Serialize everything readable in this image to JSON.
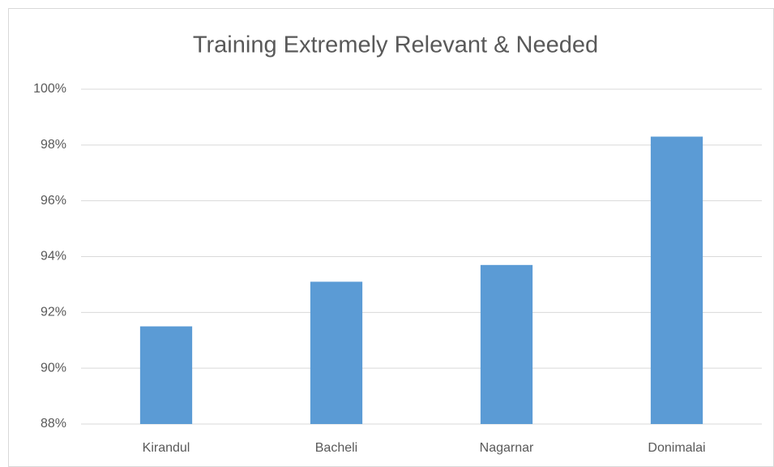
{
  "chart_data": {
    "type": "bar",
    "title": "Training Extremely Relevant & Needed",
    "categories": [
      "Kirandul",
      "Bacheli",
      "Nagarnar",
      "Donimalai"
    ],
    "values": [
      91.5,
      93.1,
      93.7,
      98.3
    ],
    "color": "#5b9bd5",
    "ylim": [
      88,
      100
    ],
    "yticks": [
      {
        "value": 88,
        "label": "88%"
      },
      {
        "value": 90,
        "label": "90%"
      },
      {
        "value": 92,
        "label": "92%"
      },
      {
        "value": 94,
        "label": "94%"
      },
      {
        "value": 96,
        "label": "96%"
      },
      {
        "value": 98,
        "label": "98%"
      },
      {
        "value": 100,
        "label": "100%"
      }
    ],
    "grid": true
  }
}
